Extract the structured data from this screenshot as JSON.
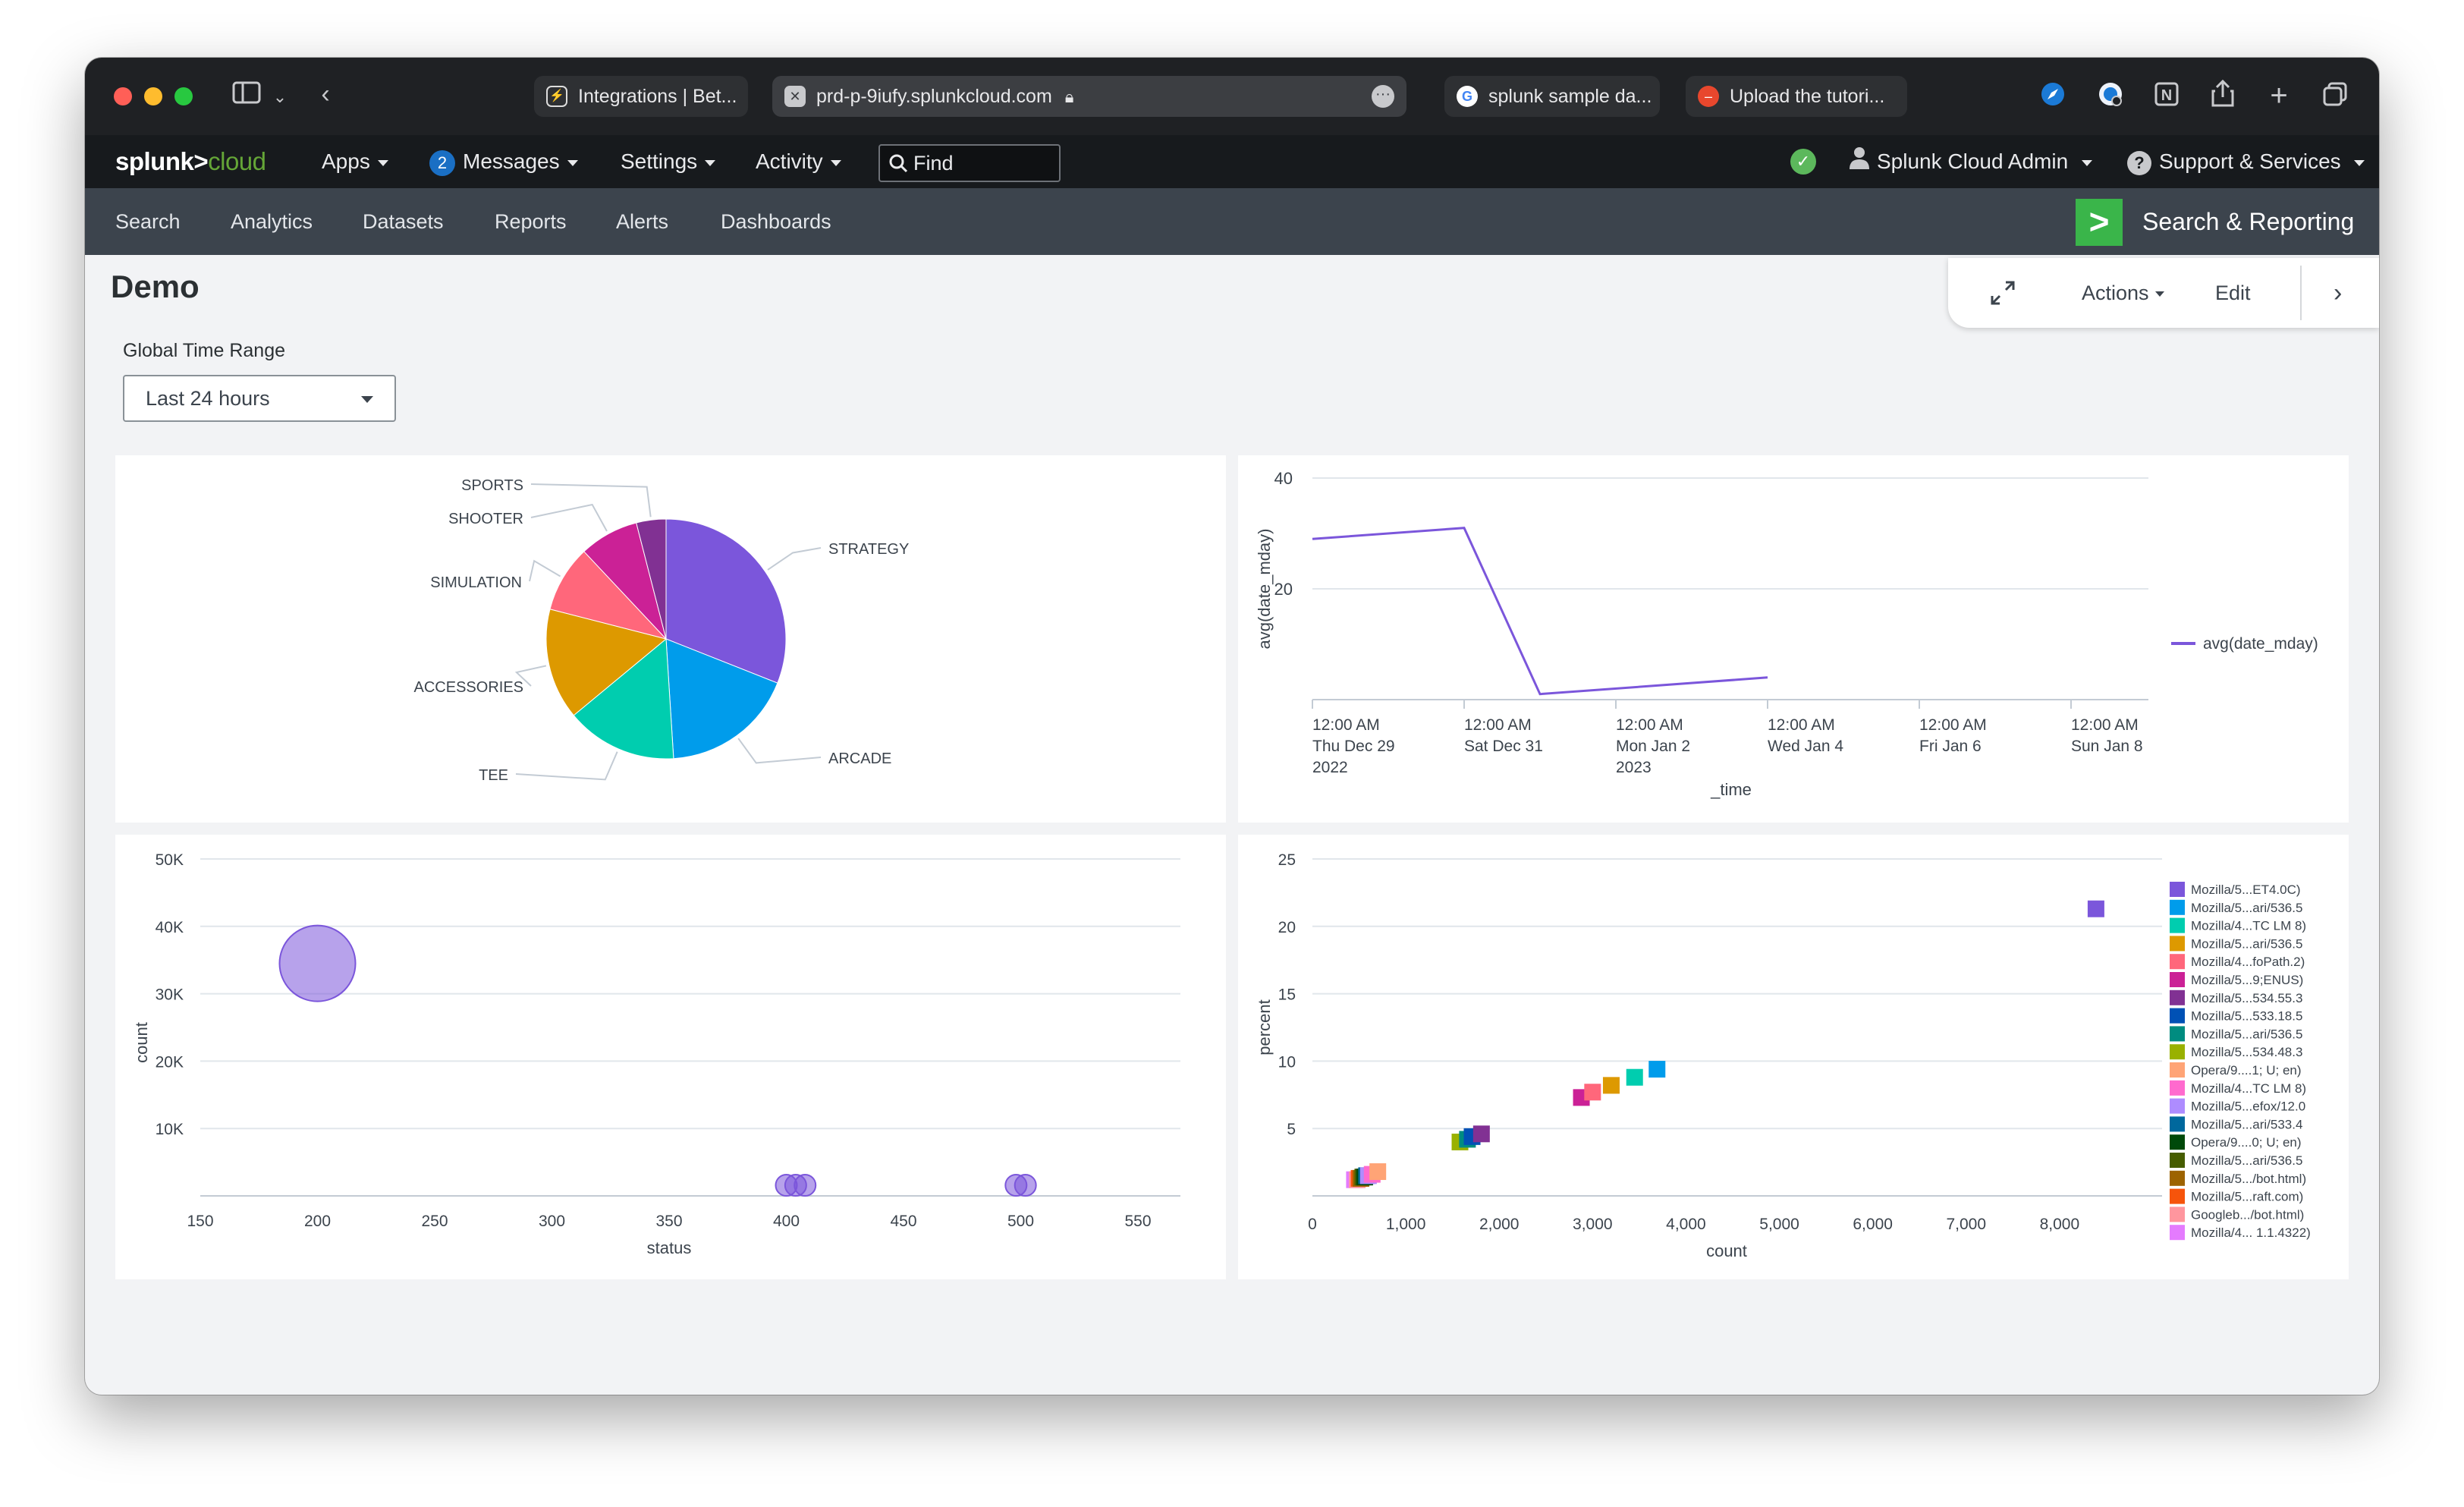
{
  "browser": {
    "tabs": [
      {
        "label": "Integrations | Bet...",
        "icon": "lightning-icon"
      },
      {
        "label": "prd-p-9iufy.splunkcloud.com",
        "icon": "close-icon"
      },
      {
        "label": "splunk sample da...",
        "icon": "google-icon"
      },
      {
        "label": "Upload the tutori...",
        "icon": "upload-icon"
      }
    ]
  },
  "topbar": {
    "logo_main": "splunk>",
    "logo_cloud": "cloud",
    "apps": "Apps",
    "messages_count": "2",
    "messages": "Messages",
    "settings": "Settings",
    "activity": "Activity",
    "find_placeholder": "Find",
    "user": "Splunk Cloud Admin",
    "support": "Support & Services"
  },
  "nav": {
    "items": [
      "Search",
      "Analytics",
      "Datasets",
      "Reports",
      "Alerts",
      "Dashboards"
    ],
    "app_name": "Search & Reporting"
  },
  "dashboard": {
    "title": "Demo",
    "actions": "Actions",
    "edit": "Edit",
    "time_range_label": "Global Time Range",
    "time_range_value": "Last 24 hours"
  },
  "colors": {
    "series": [
      "#7b56db",
      "#009ceb",
      "#00cdaf",
      "#dd9900",
      "#ff677b",
      "#cb2196",
      "#813193",
      "#0051b5",
      "#008c80",
      "#99b100",
      "#ffa476",
      "#ff6ace",
      "#ae8cff",
      "#00689d",
      "#00490a",
      "#465d00",
      "#9d6300",
      "#f6540b",
      "#ff969e",
      "#e47bfe"
    ]
  },
  "chart_data": [
    {
      "type": "pie",
      "slices": [
        {
          "label": "STRATEGY",
          "value": 31
        },
        {
          "label": "ARCADE",
          "value": 18
        },
        {
          "label": "TEE",
          "value": 15
        },
        {
          "label": "ACCESSORIES",
          "value": 15
        },
        {
          "label": "SIMULATION",
          "value": 9
        },
        {
          "label": "SHOOTER",
          "value": 8
        },
        {
          "label": "SPORTS",
          "value": 4
        }
      ]
    },
    {
      "type": "line",
      "xlabel": "_time",
      "ylabel": "avg(date_mday)",
      "ylim": [
        0,
        40
      ],
      "yticks": [
        20,
        40
      ],
      "xticks": [
        [
          "12:00 AM",
          "Thu Dec 29",
          "2022"
        ],
        [
          "12:00 AM",
          "Sat Dec 31",
          ""
        ],
        [
          "12:00 AM",
          "Mon Jan 2",
          "2023"
        ],
        [
          "12:00 AM",
          "Wed Jan 4",
          ""
        ],
        [
          "12:00 AM",
          "Fri Jan 6",
          ""
        ],
        [
          "12:00 AM",
          "Sun Jan 8",
          ""
        ]
      ],
      "series": [
        {
          "name": "avg(date_mday)",
          "x": [
            "2022-12-29",
            "2022-12-31",
            "2023-01-01",
            "2023-01-04"
          ],
          "y": [
            29,
            31,
            1,
            4
          ]
        }
      ],
      "legend": "right"
    },
    {
      "type": "scatter",
      "xlabel": "status",
      "ylabel": "count",
      "xlim": [
        150,
        550
      ],
      "ylim": [
        0,
        50000
      ],
      "xticks": [
        150,
        200,
        250,
        300,
        350,
        400,
        450,
        500,
        550
      ],
      "yticks": [
        {
          "v": 10000,
          "label": "10K"
        },
        {
          "v": 20000,
          "label": "20K"
        },
        {
          "v": 30000,
          "label": "30K"
        },
        {
          "v": 40000,
          "label": "40K"
        },
        {
          "v": 50000,
          "label": "50K"
        }
      ],
      "points": [
        {
          "x": 200,
          "y": 34500,
          "size": 1.0
        },
        {
          "x": 400,
          "y": 300,
          "size": 0.28
        },
        {
          "x": 404,
          "y": 300,
          "size": 0.28
        },
        {
          "x": 408,
          "y": 300,
          "size": 0.28
        },
        {
          "x": 498,
          "y": 300,
          "size": 0.28
        },
        {
          "x": 502,
          "y": 300,
          "size": 0.28
        }
      ]
    },
    {
      "type": "scatter",
      "xlabel": "count",
      "ylabel": "percent",
      "xlim": [
        0,
        9000
      ],
      "ylim": [
        0,
        25
      ],
      "xticks": [
        {
          "v": 0,
          "label": "0"
        },
        {
          "v": 1000,
          "label": "1,000"
        },
        {
          "v": 2000,
          "label": "2,000"
        },
        {
          "v": 3000,
          "label": "3,000"
        },
        {
          "v": 4000,
          "label": "4,000"
        },
        {
          "v": 5000,
          "label": "5,000"
        },
        {
          "v": 6000,
          "label": "6,000"
        },
        {
          "v": 7000,
          "label": "7,000"
        },
        {
          "v": 8000,
          "label": "8,000"
        }
      ],
      "yticks": [
        5,
        10,
        15,
        20,
        25
      ],
      "series": [
        {
          "name": "Mozilla/5...ET4.0C)",
          "x": 8390,
          "y": 21.3
        },
        {
          "name": "Mozilla/5...ari/536.5",
          "x": 3690,
          "y": 9.4
        },
        {
          "name": "Mozilla/4...TC LM 8)",
          "x": 3450,
          "y": 8.8
        },
        {
          "name": "Mozilla/5...ari/536.5",
          "x": 3200,
          "y": 8.2
        },
        {
          "name": "Mozilla/4...foPath.2)",
          "x": 3000,
          "y": 7.7
        },
        {
          "name": "Mozilla/5...9;ENUS)",
          "x": 2880,
          "y": 7.3
        },
        {
          "name": "Mozilla/5...534.55.3",
          "x": 1810,
          "y": 4.6
        },
        {
          "name": "Mozilla/5...533.18.5",
          "x": 1710,
          "y": 4.4
        },
        {
          "name": "Mozilla/5...ari/536.5",
          "x": 1660,
          "y": 4.2
        },
        {
          "name": "Mozilla/5...534.48.3",
          "x": 1580,
          "y": 4.0
        },
        {
          "name": "Opera/9....1; U; en)",
          "x": 700,
          "y": 1.8
        },
        {
          "name": "Mozilla/4...TC LM 8)",
          "x": 640,
          "y": 1.6
        },
        {
          "name": "Mozilla/5...efox/12.0",
          "x": 600,
          "y": 1.5
        },
        {
          "name": "Mozilla/5...ari/533.4",
          "x": 580,
          "y": 1.5
        },
        {
          "name": "Opera/9....0; U; en)",
          "x": 560,
          "y": 1.4
        },
        {
          "name": "Mozilla/5...ari/536.5",
          "x": 540,
          "y": 1.4
        },
        {
          "name": "Mozilla/5.../bot.html)",
          "x": 520,
          "y": 1.3
        },
        {
          "name": "Mozilla/5...raft.com)",
          "x": 500,
          "y": 1.3
        },
        {
          "name": "Googleb.../bot.html)",
          "x": 480,
          "y": 1.2
        },
        {
          "name": "Mozilla/4... 1.1.4322)",
          "x": 450,
          "y": 1.2
        }
      ],
      "legend": "right"
    }
  ]
}
